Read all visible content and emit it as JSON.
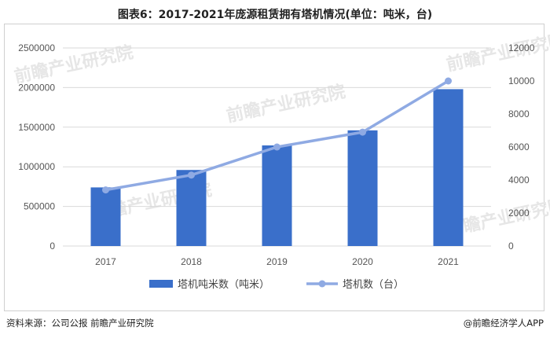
{
  "title": "图表6：2017-2021年庞源租赁拥有塔机情况(单位：吨米，台)",
  "source": "资料来源：公司公报 前瞻产业研究院",
  "brand": "@前瞻经济学人APP",
  "watermark": "前瞻产业研究院",
  "colors": {
    "bar": "#3a6fca",
    "line": "#8faae3",
    "grid": "#d9d9d9"
  },
  "chart_data": {
    "type": "bar",
    "categories": [
      "2017",
      "2018",
      "2019",
      "2020",
      "2021"
    ],
    "y_left": {
      "ylim": [
        0,
        2500000
      ],
      "ticks": [
        "0",
        "500000",
        "1000000",
        "1500000",
        "2000000",
        "2500000"
      ]
    },
    "y_right": {
      "ylim": [
        0,
        12000
      ],
      "ticks": [
        "0",
        "2000",
        "4000",
        "6000",
        "8000",
        "10000",
        "12000"
      ]
    },
    "grid": true,
    "legend_position": "bottom",
    "series": [
      {
        "name": "塔机吨米数（吨米）",
        "type": "bar",
        "axis": "left",
        "values": [
          740000,
          960000,
          1270000,
          1460000,
          1980000
        ]
      },
      {
        "name": "塔机数（台）",
        "type": "line",
        "axis": "right",
        "values": [
          3400,
          4300,
          6000,
          6900,
          10000
        ]
      }
    ]
  }
}
